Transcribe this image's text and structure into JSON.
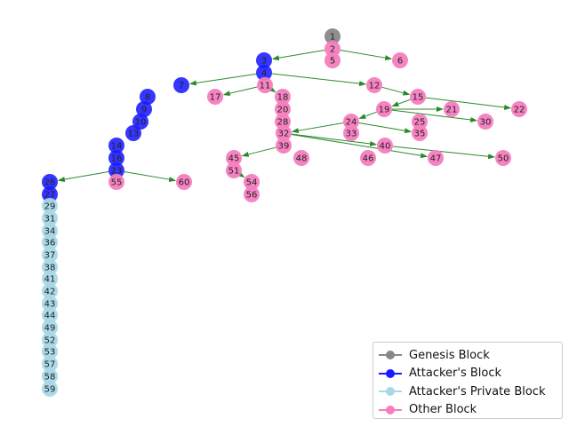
{
  "diagram": {
    "colors": {
      "genesis": "#888888",
      "attacker": "#1a1aff",
      "private": "#a8d8e8",
      "other": "#f77dbf",
      "edge": "#2a8a2a"
    },
    "nodes": [
      {
        "id": "1",
        "type": "genesis"
      },
      {
        "id": "2",
        "type": "other"
      },
      {
        "id": "3",
        "type": "attacker"
      },
      {
        "id": "4",
        "type": "attacker"
      },
      {
        "id": "5",
        "type": "other"
      },
      {
        "id": "6",
        "type": "other"
      },
      {
        "id": "7",
        "type": "attacker"
      },
      {
        "id": "8",
        "type": "attacker"
      },
      {
        "id": "9",
        "type": "attacker"
      },
      {
        "id": "10",
        "type": "attacker"
      },
      {
        "id": "11",
        "type": "other"
      },
      {
        "id": "12",
        "type": "other"
      },
      {
        "id": "13",
        "type": "attacker"
      },
      {
        "id": "14",
        "type": "attacker"
      },
      {
        "id": "15",
        "type": "other"
      },
      {
        "id": "16",
        "type": "attacker"
      },
      {
        "id": "17",
        "type": "other"
      },
      {
        "id": "18",
        "type": "other"
      },
      {
        "id": "19",
        "type": "other"
      },
      {
        "id": "20",
        "type": "other"
      },
      {
        "id": "21",
        "type": "other"
      },
      {
        "id": "22",
        "type": "other"
      },
      {
        "id": "23",
        "type": "attacker"
      },
      {
        "id": "24",
        "type": "other"
      },
      {
        "id": "25",
        "type": "other"
      },
      {
        "id": "26",
        "type": "attacker"
      },
      {
        "id": "27",
        "type": "attacker"
      },
      {
        "id": "28",
        "type": "other"
      },
      {
        "id": "29",
        "type": "private"
      },
      {
        "id": "30",
        "type": "other"
      },
      {
        "id": "31",
        "type": "private"
      },
      {
        "id": "32",
        "type": "other"
      },
      {
        "id": "33",
        "type": "other"
      },
      {
        "id": "34",
        "type": "private"
      },
      {
        "id": "35",
        "type": "other"
      },
      {
        "id": "36",
        "type": "private"
      },
      {
        "id": "37",
        "type": "private"
      },
      {
        "id": "38",
        "type": "private"
      },
      {
        "id": "39",
        "type": "other"
      },
      {
        "id": "40",
        "type": "other"
      },
      {
        "id": "41",
        "type": "private"
      },
      {
        "id": "42",
        "type": "private"
      },
      {
        "id": "43",
        "type": "private"
      },
      {
        "id": "44",
        "type": "private"
      },
      {
        "id": "45",
        "type": "other"
      },
      {
        "id": "46",
        "type": "other"
      },
      {
        "id": "47",
        "type": "other"
      },
      {
        "id": "48",
        "type": "other"
      },
      {
        "id": "49",
        "type": "private"
      },
      {
        "id": "50",
        "type": "other"
      },
      {
        "id": "51",
        "type": "other"
      },
      {
        "id": "52",
        "type": "private"
      },
      {
        "id": "53",
        "type": "private"
      },
      {
        "id": "54",
        "type": "other"
      },
      {
        "id": "55",
        "type": "other"
      },
      {
        "id": "56",
        "type": "other"
      },
      {
        "id": "57",
        "type": "private"
      },
      {
        "id": "58",
        "type": "private"
      },
      {
        "id": "59",
        "type": "private"
      },
      {
        "id": "60",
        "type": "other"
      }
    ],
    "edges": [
      [
        "2",
        "3"
      ],
      [
        "2",
        "6"
      ],
      [
        "4",
        "7"
      ],
      [
        "4",
        "12"
      ],
      [
        "11",
        "17"
      ],
      [
        "12",
        "15"
      ],
      [
        "15",
        "19"
      ],
      [
        "15",
        "22"
      ],
      [
        "19",
        "24"
      ],
      [
        "19",
        "30"
      ],
      [
        "19",
        "21"
      ],
      [
        "24",
        "32"
      ],
      [
        "24",
        "35"
      ],
      [
        "32",
        "40"
      ],
      [
        "32",
        "47"
      ],
      [
        "40",
        "50"
      ],
      [
        "39",
        "45"
      ],
      [
        "51",
        "54"
      ],
      [
        "23",
        "26"
      ],
      [
        "23",
        "60"
      ],
      [
        "20",
        "18"
      ],
      [
        "11",
        "18"
      ]
    ],
    "legend": [
      {
        "label": "Genesis Block",
        "type": "genesis"
      },
      {
        "label": "Attacker's Block",
        "type": "attacker"
      },
      {
        "label": "Attacker's Private Block",
        "type": "private"
      },
      {
        "label": "Other Block",
        "type": "other"
      }
    ]
  }
}
